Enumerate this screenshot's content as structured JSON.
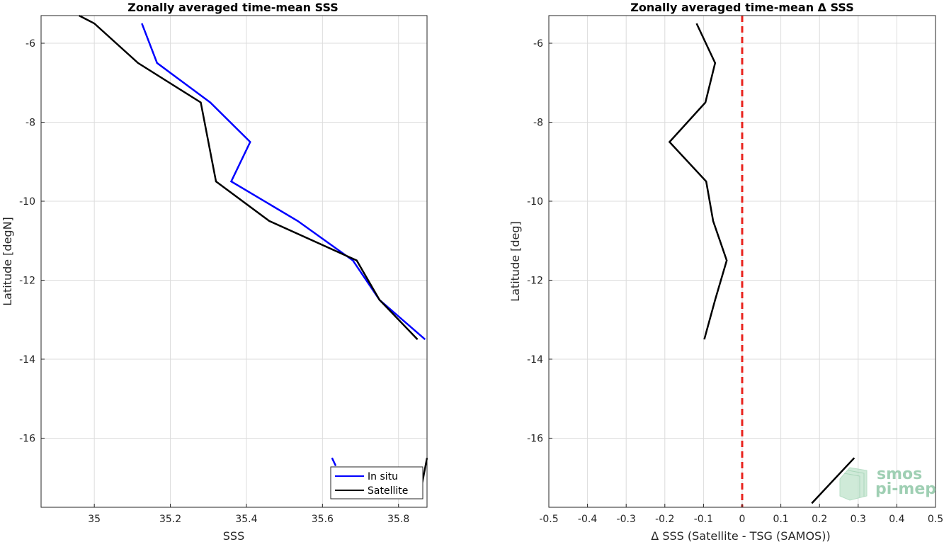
{
  "logo": {
    "line1": "smos",
    "line2": "pi-mep",
    "color": "#6dbf8f"
  },
  "chart_data": [
    {
      "type": "line",
      "title": "Zonally averaged time-mean SSS",
      "xlabel": "SSS",
      "ylabel": "Latitude [degN]",
      "xlim": [
        34.86,
        35.875
      ],
      "ylim": [
        -17.75,
        -5.3
      ],
      "xticks": [
        35,
        35.2,
        35.4,
        35.6,
        35.8
      ],
      "xtick_labels": [
        "35",
        "35.2",
        "35.4",
        "35.6",
        "35.8"
      ],
      "yticks": [
        -6,
        -8,
        -10,
        -12,
        -14,
        -16
      ],
      "ytick_labels": [
        "-6",
        "-8",
        "-10",
        "-12",
        "-14",
        "-16"
      ],
      "grid": true,
      "legend_position": "bottom-right",
      "series": [
        {
          "name": "In situ",
          "color": "#0000ff",
          "segments": [
            [
              [
                35.125,
                -5.5
              ],
              [
                35.165,
                -6.5
              ],
              [
                35.305,
                -7.5
              ],
              [
                35.41,
                -8.5
              ],
              [
                35.36,
                -9.5
              ],
              [
                35.535,
                -10.5
              ],
              [
                35.68,
                -11.5
              ],
              [
                35.75,
                -12.5
              ],
              [
                35.87,
                -13.5
              ]
            ],
            [
              [
                35.625,
                -16.5
              ],
              [
                35.635,
                -16.7
              ]
            ]
          ]
        },
        {
          "name": "Satellite",
          "color": "#000000",
          "segments": [
            [
              [
                34.96,
                -5.3
              ],
              [
                35.0,
                -5.5
              ],
              [
                35.115,
                -6.5
              ],
              [
                35.28,
                -7.5
              ],
              [
                35.32,
                -9.5
              ],
              [
                35.46,
                -10.5
              ],
              [
                35.69,
                -11.5
              ],
              [
                35.75,
                -12.5
              ],
              [
                35.85,
                -13.5
              ]
            ],
            [
              [
                35.855,
                -17.5
              ],
              [
                35.875,
                -16.5
              ]
            ]
          ]
        }
      ]
    },
    {
      "type": "line",
      "title": "Zonally averaged time-mean Δ SSS",
      "xlabel": "Δ SSS (Satellite - TSG (SAMOS))",
      "ylabel": "Latitude [deg]",
      "xlim": [
        -0.5,
        0.5
      ],
      "ylim": [
        -17.75,
        -5.3
      ],
      "xticks": [
        -0.5,
        -0.4,
        -0.3,
        -0.2,
        -0.1,
        0,
        0.1,
        0.2,
        0.3,
        0.4,
        0.5
      ],
      "xtick_labels": [
        "-0.5",
        "-0.4",
        "-0.3",
        "-0.2",
        "-0.1",
        "0",
        "0.1",
        "0.2",
        "0.3",
        "0.4",
        "0.5"
      ],
      "yticks": [
        -6,
        -8,
        -10,
        -12,
        -14,
        -16
      ],
      "ytick_labels": [
        "-6",
        "-8",
        "-10",
        "-12",
        "-14",
        "-16"
      ],
      "grid": true,
      "reference_line": {
        "x": 0,
        "color": "#e8231d",
        "style": "dashed"
      },
      "series": [
        {
          "color": "#000000",
          "segments": [
            [
              [
                -0.118,
                -5.5
              ],
              [
                -0.07,
                -6.5
              ],
              [
                -0.095,
                -7.5
              ],
              [
                -0.188,
                -8.5
              ],
              [
                -0.093,
                -9.5
              ],
              [
                -0.075,
                -10.5
              ],
              [
                -0.04,
                -11.5
              ],
              [
                -0.07,
                -12.5
              ],
              [
                -0.098,
                -13.5
              ]
            ],
            [
              [
                0.18,
                -17.65
              ],
              [
                0.29,
                -16.5
              ]
            ]
          ]
        }
      ]
    }
  ]
}
